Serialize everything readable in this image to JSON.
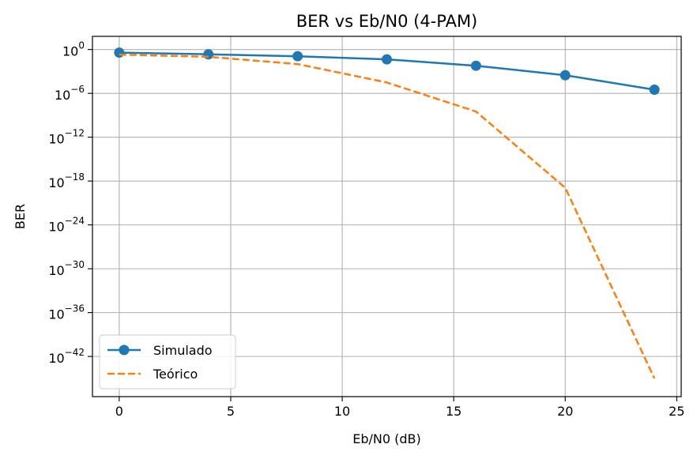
{
  "chart_data": {
    "type": "line",
    "title": "BER vs Eb/N0 (4-PAM)",
    "xlabel": "Eb/N0 (dB)",
    "ylabel": "BER",
    "xlim": [
      -1.2,
      25.2
    ],
    "ylim_log10": [
      -47.5,
      1.8
    ],
    "y_scale": "log",
    "x_ticks": [
      0,
      5,
      10,
      15,
      20,
      25
    ],
    "y_ticks_exponent": [
      0,
      -6,
      -12,
      -18,
      -24,
      -30,
      -36,
      -42
    ],
    "y_tick_base": "10",
    "grid": true,
    "legend_position": "lower-left",
    "x": [
      0,
      4,
      8,
      12,
      16,
      20,
      24
    ],
    "series": [
      {
        "name": "Simulado",
        "style": "solid",
        "marker": "circle",
        "color": "#1f77b4",
        "values": [
          0.375,
          0.22,
          0.12,
          0.045,
          0.006,
          0.0003,
          3.2e-06
        ]
      },
      {
        "name": "Teórico",
        "style": "dashed",
        "marker": "none",
        "color": "#ff7f0e",
        "values": [
          0.2,
          0.1,
          0.01,
          3.1e-05,
          3.2e-09,
          1.2e-19,
          1e-45
        ]
      }
    ]
  }
}
